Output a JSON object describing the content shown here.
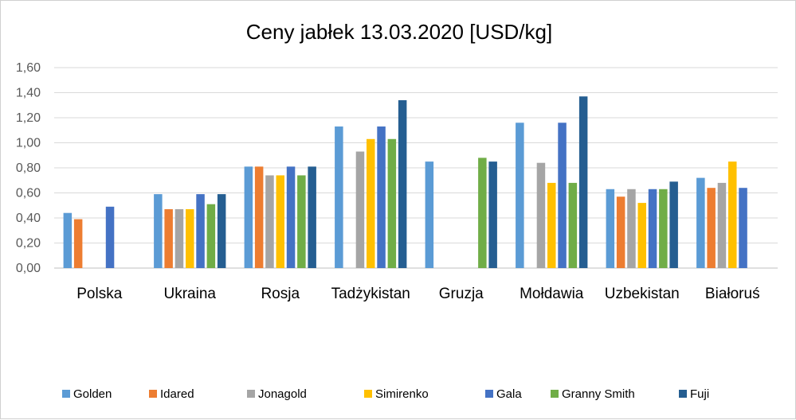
{
  "chart_data": {
    "type": "bar",
    "title": "Ceny jabłek 13.03.2020 [USD/kg]",
    "categories": [
      "Polska",
      "Ukraina",
      "Rosja",
      "Tadżykistan",
      "Gruzja",
      "Mołdawia",
      "Uzbekistan",
      "Białoruś"
    ],
    "ylim": [
      0,
      1.6
    ],
    "yticks": [
      "0,00",
      "0,20",
      "0,40",
      "0,60",
      "0,80",
      "1,00",
      "1,20",
      "1,40",
      "1,60"
    ],
    "grid": true,
    "legend_position": "bottom",
    "series": [
      {
        "name": "Golden",
        "color": "#5B9BD5",
        "values": [
          0.44,
          0.59,
          0.81,
          1.13,
          0.85,
          1.16,
          0.63,
          0.72
        ]
      },
      {
        "name": "Idared",
        "color": "#ED7D31",
        "values": [
          0.39,
          0.47,
          0.81,
          null,
          null,
          null,
          0.57,
          0.64
        ]
      },
      {
        "name": "Jonagold",
        "color": "#A5A5A5",
        "values": [
          null,
          0.47,
          0.74,
          0.93,
          null,
          0.84,
          0.63,
          0.68
        ]
      },
      {
        "name": "Simirenko",
        "color": "#FFC000",
        "values": [
          null,
          0.47,
          0.74,
          1.03,
          null,
          0.68,
          0.52,
          0.85
        ]
      },
      {
        "name": "Gala",
        "color": "#4472C4",
        "values": [
          0.49,
          0.59,
          0.81,
          1.13,
          null,
          1.16,
          0.63,
          0.64
        ]
      },
      {
        "name": "Granny Smith",
        "color": "#70AD47",
        "values": [
          null,
          0.51,
          0.74,
          1.03,
          0.88,
          0.68,
          0.63,
          null
        ]
      },
      {
        "name": "Fuji",
        "color": "#255E91",
        "values": [
          null,
          0.59,
          0.81,
          1.34,
          0.85,
          1.37,
          0.69,
          null
        ]
      }
    ]
  }
}
